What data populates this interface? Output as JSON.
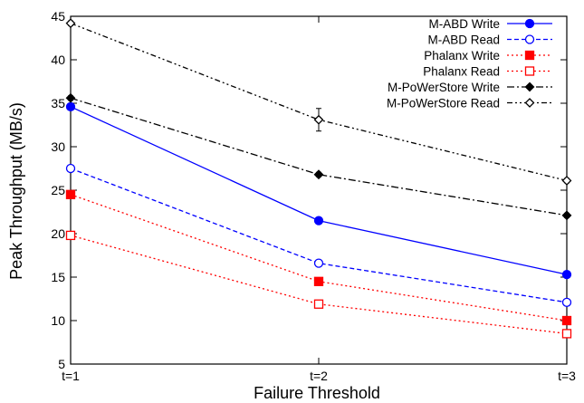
{
  "chart_data": {
    "type": "line",
    "title": "",
    "xlabel": "Failure Threshold",
    "ylabel": "Peak Throughput (MB/s)",
    "categories": [
      "t=1",
      "t=2",
      "t=3"
    ],
    "ylim": [
      5,
      45
    ],
    "yticks": [
      5,
      10,
      15,
      20,
      25,
      30,
      35,
      40,
      45
    ],
    "grid": false,
    "legend_position": "top-right",
    "error_bars": "small vertical error bars at each point",
    "series": [
      {
        "name": "M-ABD Write",
        "values": [
          34.6,
          21.5,
          15.3
        ],
        "color": "#0000ff",
        "dash": "solid",
        "marker": "filled-circle"
      },
      {
        "name": "M-ABD Read",
        "values": [
          27.5,
          16.6,
          12.1
        ],
        "color": "#0000ff",
        "dash": "dashed",
        "marker": "open-circle"
      },
      {
        "name": "Phalanx Write",
        "values": [
          24.5,
          14.5,
          10.0
        ],
        "color": "#ff0000",
        "dash": "dotted",
        "marker": "filled-square"
      },
      {
        "name": "Phalanx Read",
        "values": [
          19.8,
          11.9,
          8.5
        ],
        "color": "#ff0000",
        "dash": "dotted",
        "marker": "open-square"
      },
      {
        "name": "M-PoWerStore Write",
        "values": [
          35.6,
          26.8,
          22.1
        ],
        "color": "#000000",
        "dash": "dashdot",
        "marker": "filled-diamond"
      },
      {
        "name": "M-PoWerStore Read",
        "values": [
          44.2,
          33.1,
          26.1
        ],
        "color": "#000000",
        "dash": "dashdotdot",
        "marker": "open-diamond"
      }
    ]
  }
}
